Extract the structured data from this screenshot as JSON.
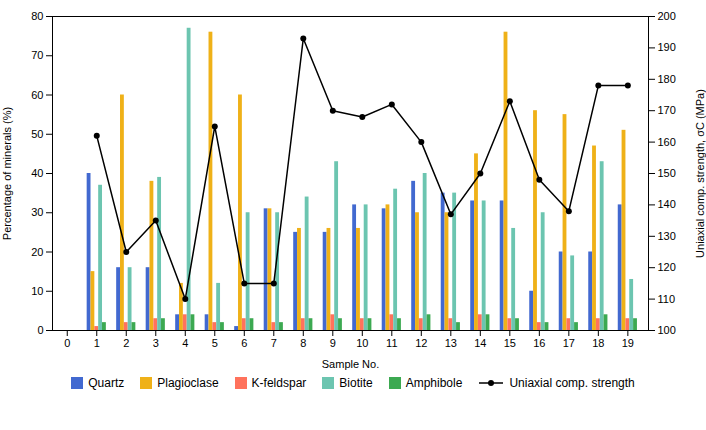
{
  "chart_data": {
    "type": "bar",
    "xlabel": "Sample No.",
    "ylabel": "Percentage of minerals (%)",
    "y2label": "Uniaxial comp. strength, σC (MPa)",
    "x": [
      1,
      2,
      3,
      4,
      5,
      6,
      7,
      8,
      9,
      10,
      11,
      12,
      13,
      14,
      15,
      16,
      17,
      18,
      19
    ],
    "xlim": [
      -0.5,
      19.7
    ],
    "xticks": [
      0,
      1,
      2,
      3,
      4,
      5,
      6,
      7,
      8,
      9,
      10,
      11,
      12,
      13,
      14,
      15,
      16,
      17,
      18,
      19
    ],
    "ylim": [
      0,
      80
    ],
    "yticks": [
      0,
      10,
      20,
      30,
      40,
      50,
      60,
      70,
      80
    ],
    "y2lim": [
      100,
      200
    ],
    "y2ticks": [
      100,
      110,
      120,
      130,
      140,
      150,
      160,
      170,
      180,
      190,
      200
    ],
    "legend": "bottom",
    "series": [
      {
        "name": "Quartz",
        "type": "bar",
        "values": [
          40,
          16,
          16,
          4,
          4,
          1,
          31,
          25,
          25,
          32,
          31,
          38,
          35,
          33,
          33,
          10,
          20,
          20,
          32
        ]
      },
      {
        "name": "Plagioclase",
        "type": "bar",
        "values": [
          15,
          60,
          38,
          12,
          76,
          60,
          31,
          26,
          26,
          26,
          32,
          30,
          30,
          45,
          76,
          56,
          55,
          47,
          51
        ]
      },
      {
        "name": "K-feldspar",
        "type": "bar",
        "values": [
          1,
          2,
          3,
          4,
          2,
          3,
          2,
          3,
          4,
          3,
          4,
          3,
          3,
          4,
          3,
          2,
          3,
          3,
          3
        ]
      },
      {
        "name": "Biotite",
        "type": "bar",
        "values": [
          37,
          16,
          39,
          77,
          12,
          30,
          30,
          34,
          43,
          32,
          36,
          40,
          35,
          33,
          26,
          30,
          19,
          43,
          13
        ]
      },
      {
        "name": "Amphibole",
        "type": "bar",
        "values": [
          2,
          2,
          3,
          4,
          2,
          3,
          2,
          3,
          3,
          3,
          3,
          4,
          2,
          4,
          3,
          2,
          2,
          4,
          3
        ]
      },
      {
        "name": "Uniaxial comp. strength",
        "type": "line",
        "axis": "y2",
        "color": "black",
        "marker": "circle",
        "line_style": "solid",
        "values": [
          162,
          125,
          135,
          110,
          165,
          115,
          115,
          193,
          170,
          168,
          172,
          160,
          137,
          150,
          173,
          148,
          138,
          178,
          178
        ]
      }
    ]
  }
}
